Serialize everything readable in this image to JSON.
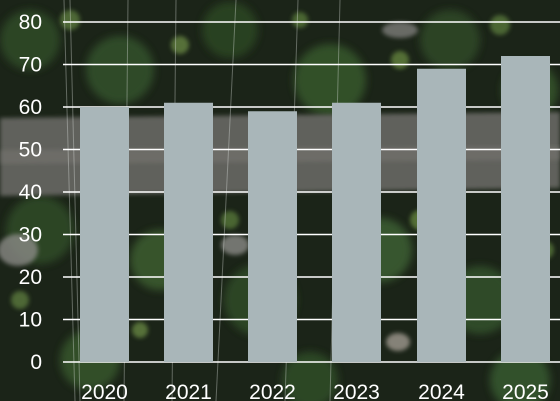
{
  "chart_data": {
    "type": "bar",
    "categories": [
      "2020",
      "2021",
      "2022",
      "2023",
      "2024",
      "2025"
    ],
    "values": [
      60,
      61,
      59,
      61,
      69,
      72
    ],
    "title": "",
    "xlabel": "",
    "ylabel": "",
    "ylim": [
      0,
      80
    ],
    "yticks": [
      "0",
      "10",
      "20",
      "30",
      "40",
      "50",
      "60",
      "70",
      "80"
    ],
    "grid": true,
    "legend": "none",
    "bar_color": "#a9b6b9",
    "grid_color": "#ffffff",
    "text_color": "#ffffff"
  },
  "background": {
    "description": "aerial photo of forest with a dirt road",
    "colors": {
      "forest_dark": "#1b2418",
      "forest_mid": "#2f4a26",
      "foliage_light": "#5f7f3f",
      "road": "#6b6a66",
      "rock": "#8a8a86"
    }
  }
}
